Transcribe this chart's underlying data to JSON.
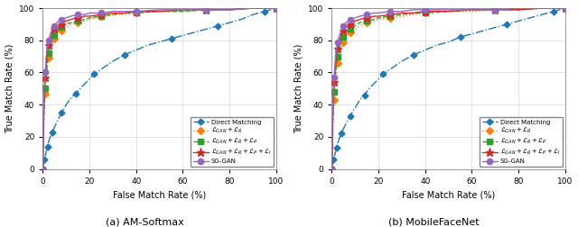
{
  "title_left": "(a) AM-Softmax",
  "title_right": "(b) MobileFaceNet",
  "xlabel": "False Match Rate (%)",
  "ylabel": "True Match Rate (%)",
  "xlim": [
    0,
    100
  ],
  "ylim": [
    0,
    100
  ],
  "xticks": [
    0,
    20,
    40,
    60,
    80,
    100
  ],
  "yticks": [
    0,
    20,
    40,
    60,
    80,
    100
  ],
  "legend_labels": [
    "Direct Matching",
    "$\\mathcal{L}_{GAN} + \\mathcal{L}_{R}$",
    "$\\mathcal{L}_{GAN} + \\mathcal{L}_{R} + \\mathcal{L}_{P}$",
    "$\\mathcal{L}_{GAN} + \\mathcal{L}_{R} + \\mathcal{L}_{P} + \\mathcal{L}_{I}$",
    "SG-GAN"
  ],
  "colors": [
    "#1f77b4",
    "#ff7f0e",
    "#2ca02c",
    "#d62728",
    "#9467bd"
  ],
  "line_styles": [
    "-.",
    ":",
    "--",
    "-",
    "-"
  ],
  "markers": [
    "D",
    "D",
    "s",
    "*",
    "o"
  ],
  "marker_sizes": [
    3.5,
    4.5,
    4.5,
    6.5,
    4.5
  ],
  "left_curves": {
    "direct": {
      "x": [
        0,
        0.2,
        0.4,
        0.6,
        0.8,
        1,
        1.2,
        1.5,
        2,
        2.5,
        3,
        3.5,
        4,
        5,
        6,
        7,
        8,
        9,
        10,
        12,
        14,
        16,
        18,
        20,
        22,
        25,
        28,
        30,
        35,
        40,
        45,
        50,
        55,
        60,
        65,
        70,
        75,
        80,
        85,
        90,
        95,
        100
      ],
      "y": [
        0,
        2,
        4,
        5,
        6,
        8,
        9,
        11,
        14,
        17,
        19,
        21,
        23,
        26,
        29,
        32,
        35,
        37,
        40,
        44,
        47,
        50,
        53,
        56,
        59,
        62,
        65,
        67,
        71,
        74,
        77,
        79,
        81,
        83,
        85,
        87,
        89,
        91,
        93,
        96,
        98,
        100
      ]
    },
    "l_gan_r": {
      "x": [
        0,
        0.3,
        0.6,
        1,
        1.5,
        2,
        2.5,
        3,
        4,
        5,
        6,
        7,
        8,
        10,
        12,
        15,
        18,
        20,
        25,
        30,
        35,
        40,
        50,
        60,
        70,
        80,
        90,
        100
      ],
      "y": [
        0,
        20,
        35,
        47,
        57,
        64,
        69,
        73,
        78,
        81,
        83,
        85,
        86,
        88,
        90,
        91,
        92,
        93,
        95,
        96,
        96,
        97,
        98,
        98,
        99,
        99,
        100,
        100
      ]
    },
    "l_gan_r_p": {
      "x": [
        0,
        0.3,
        0.6,
        1,
        1.5,
        2,
        2.5,
        3,
        4,
        5,
        6,
        7,
        8,
        10,
        12,
        15,
        18,
        20,
        25,
        30,
        35,
        40,
        50,
        60,
        70,
        80,
        90,
        100
      ],
      "y": [
        0,
        22,
        38,
        50,
        60,
        67,
        72,
        76,
        80,
        83,
        85,
        87,
        88,
        90,
        91,
        92,
        93,
        94,
        95,
        96,
        97,
        97,
        98,
        98,
        99,
        99,
        100,
        100
      ]
    },
    "l_gan_r_p_i": {
      "x": [
        0,
        0.3,
        0.6,
        1,
        1.5,
        2,
        2.5,
        3,
        4,
        5,
        6,
        7,
        8,
        10,
        12,
        15,
        18,
        20,
        25,
        30,
        35,
        40,
        50,
        60,
        70,
        80,
        90,
        100
      ],
      "y": [
        0,
        28,
        45,
        57,
        66,
        72,
        77,
        80,
        84,
        87,
        88,
        89,
        90,
        92,
        93,
        94,
        95,
        95,
        96,
        97,
        97,
        98,
        98,
        99,
        99,
        99,
        100,
        100
      ]
    },
    "sg_gan": {
      "x": [
        0,
        0.3,
        0.6,
        1,
        1.5,
        2,
        2.5,
        3,
        4,
        5,
        6,
        7,
        8,
        10,
        12,
        15,
        18,
        20,
        25,
        30,
        35,
        40,
        50,
        60,
        70,
        80,
        90,
        100
      ],
      "y": [
        0,
        30,
        48,
        60,
        69,
        75,
        80,
        83,
        87,
        89,
        91,
        92,
        93,
        94,
        95,
        96,
        96,
        97,
        97,
        98,
        98,
        98,
        99,
        99,
        99,
        99,
        100,
        100
      ]
    }
  },
  "right_curves": {
    "direct": {
      "x": [
        0,
        0.2,
        0.4,
        0.6,
        0.8,
        1,
        1.2,
        1.5,
        2,
        2.5,
        3,
        3.5,
        4,
        5,
        6,
        7,
        8,
        9,
        10,
        12,
        14,
        16,
        18,
        20,
        22,
        25,
        28,
        30,
        35,
        40,
        45,
        50,
        55,
        60,
        65,
        70,
        75,
        80,
        85,
        90,
        95,
        100
      ],
      "y": [
        0,
        2,
        3,
        4,
        6,
        7,
        8,
        10,
        13,
        16,
        18,
        20,
        22,
        25,
        28,
        31,
        33,
        36,
        38,
        43,
        46,
        50,
        53,
        56,
        59,
        62,
        65,
        67,
        71,
        74,
        77,
        79,
        82,
        84,
        86,
        88,
        90,
        92,
        94,
        96,
        98,
        100
      ]
    },
    "l_gan_r": {
      "x": [
        0,
        0.3,
        0.6,
        1,
        1.5,
        2,
        2.5,
        3,
        4,
        5,
        6,
        7,
        8,
        10,
        12,
        15,
        18,
        20,
        25,
        30,
        35,
        40,
        50,
        60,
        70,
        80,
        90,
        100
      ],
      "y": [
        0,
        18,
        32,
        43,
        54,
        61,
        66,
        70,
        75,
        79,
        81,
        83,
        85,
        87,
        89,
        91,
        92,
        93,
        94,
        95,
        96,
        97,
        98,
        98,
        99,
        99,
        100,
        100
      ]
    },
    "l_gan_r_p": {
      "x": [
        0,
        0.3,
        0.6,
        1,
        1.5,
        2,
        2.5,
        3,
        4,
        5,
        6,
        7,
        8,
        10,
        12,
        15,
        18,
        20,
        25,
        30,
        35,
        40,
        50,
        60,
        70,
        80,
        90,
        100
      ],
      "y": [
        0,
        20,
        36,
        48,
        58,
        65,
        70,
        74,
        79,
        82,
        84,
        86,
        87,
        89,
        91,
        92,
        93,
        94,
        95,
        96,
        97,
        97,
        98,
        99,
        99,
        99,
        100,
        100
      ]
    },
    "l_gan_r_p_i": {
      "x": [
        0,
        0.3,
        0.6,
        1,
        1.5,
        2,
        2.5,
        3,
        4,
        5,
        6,
        7,
        8,
        10,
        12,
        15,
        18,
        20,
        25,
        30,
        35,
        40,
        50,
        60,
        70,
        80,
        90,
        100
      ],
      "y": [
        0,
        25,
        42,
        54,
        63,
        70,
        75,
        78,
        83,
        86,
        88,
        89,
        90,
        92,
        93,
        94,
        95,
        95,
        96,
        97,
        97,
        98,
        98,
        99,
        99,
        99,
        100,
        100
      ]
    },
    "sg_gan": {
      "x": [
        0,
        0.3,
        0.6,
        1,
        1.5,
        2,
        2.5,
        3,
        4,
        5,
        6,
        7,
        8,
        10,
        12,
        15,
        18,
        20,
        25,
        30,
        35,
        40,
        50,
        60,
        70,
        80,
        90,
        100
      ],
      "y": [
        0,
        28,
        45,
        57,
        67,
        74,
        79,
        82,
        86,
        89,
        91,
        92,
        93,
        94,
        95,
        96,
        97,
        97,
        98,
        98,
        99,
        99,
        99,
        99,
        99,
        100,
        100,
        100
      ]
    }
  }
}
